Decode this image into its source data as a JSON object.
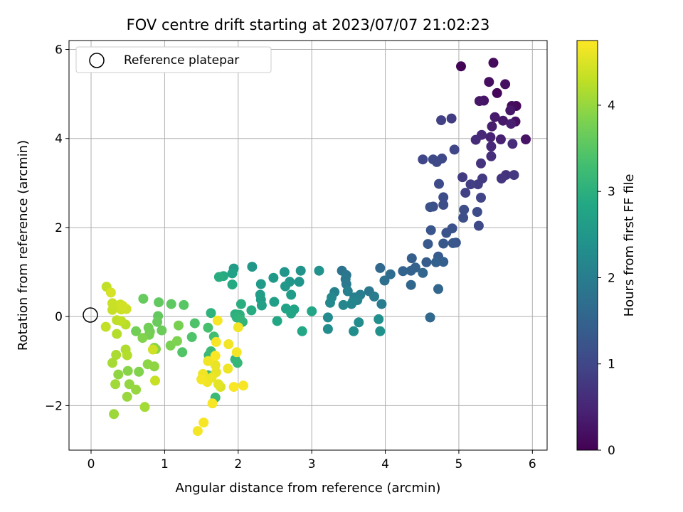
{
  "chart_data": {
    "type": "scatter",
    "title": "FOV centre drift starting at 2023/07/07 21:02:23",
    "xlabel": "Angular distance from reference (arcmin)",
    "ylabel": "Rotation from reference (arcmin)",
    "colorbar_label": "Hours from first FF file",
    "xlim": [
      -0.3,
      6.2
    ],
    "ylim": [
      -3.0,
      6.2
    ],
    "x_ticks": [
      0,
      1,
      2,
      3,
      4,
      5,
      6
    ],
    "y_ticks": [
      -2,
      0,
      2,
      4,
      6
    ],
    "colorbar_range": [
      0,
      4.75
    ],
    "colorbar_ticks": [
      0,
      1,
      2,
      3,
      4
    ],
    "colormap": "viridis",
    "grid": true,
    "legend": {
      "position": "top-left",
      "entries": [
        "Reference platepar"
      ]
    },
    "reference_point": {
      "x": 0,
      "y": 0
    },
    "points": [
      [
        5.03,
        5.62,
        0.05
      ],
      [
        5.47,
        5.7,
        0.12
      ],
      [
        5.41,
        5.27,
        0.18
      ],
      [
        5.63,
        5.22,
        0.22
      ],
      [
        5.52,
        5.02,
        0.08
      ],
      [
        5.28,
        4.84,
        0.28
      ],
      [
        5.34,
        4.85,
        0.26
      ],
      [
        5.72,
        4.73,
        0.15
      ],
      [
        5.78,
        4.73,
        0.1
      ],
      [
        5.7,
        4.63,
        0.3
      ],
      [
        5.49,
        4.48,
        0.35
      ],
      [
        5.6,
        4.4,
        0.33
      ],
      [
        5.77,
        4.38,
        0.2
      ],
      [
        5.71,
        4.33,
        0.4
      ],
      [
        5.45,
        4.27,
        0.38
      ],
      [
        5.43,
        4.03,
        0.45
      ],
      [
        5.31,
        4.08,
        0.55
      ],
      [
        5.23,
        3.97,
        0.58
      ],
      [
        5.57,
        3.98,
        0.42
      ],
      [
        5.91,
        3.98,
        0.25
      ],
      [
        5.44,
        3.82,
        0.52
      ],
      [
        5.73,
        3.88,
        0.6
      ],
      [
        5.44,
        3.6,
        0.62
      ],
      [
        5.3,
        3.44,
        0.7
      ],
      [
        4.9,
        4.45,
        0.85
      ],
      [
        4.76,
        4.41,
        0.9
      ],
      [
        5.64,
        3.18,
        0.68
      ],
      [
        5.58,
        3.1,
        0.72
      ],
      [
        5.75,
        3.18,
        0.78
      ],
      [
        5.32,
        3.1,
        0.8
      ],
      [
        5.05,
        3.13,
        0.82
      ],
      [
        5.26,
        2.97,
        0.85
      ],
      [
        5.16,
        2.97,
        0.88
      ],
      [
        5.09,
        2.78,
        0.9
      ],
      [
        5.3,
        2.67,
        0.95
      ],
      [
        4.94,
        3.75,
        0.98
      ],
      [
        4.51,
        3.53,
        1.0
      ],
      [
        4.77,
        3.55,
        1.02
      ],
      [
        4.65,
        3.53,
        1.05
      ],
      [
        4.7,
        3.47,
        1.03
      ],
      [
        4.73,
        2.98,
        1.08
      ],
      [
        4.79,
        2.68,
        1.1
      ],
      [
        4.79,
        2.51,
        1.12
      ],
      [
        4.65,
        2.47,
        1.15
      ],
      [
        4.61,
        2.46,
        1.18
      ],
      [
        5.07,
        2.4,
        1.12
      ],
      [
        5.25,
        2.35,
        1.08
      ],
      [
        5.06,
        2.22,
        1.14
      ],
      [
        5.27,
        2.04,
        1.06
      ],
      [
        4.91,
        1.98,
        1.2
      ],
      [
        4.83,
        1.88,
        1.22
      ],
      [
        4.62,
        1.94,
        1.25
      ],
      [
        4.92,
        1.65,
        1.28
      ],
      [
        4.96,
        1.66,
        1.24
      ],
      [
        4.79,
        1.64,
        1.3
      ],
      [
        4.58,
        1.63,
        1.32
      ],
      [
        4.72,
        1.35,
        1.35
      ],
      [
        4.36,
        1.31,
        1.4
      ],
      [
        4.56,
        1.22,
        1.38
      ],
      [
        4.79,
        1.23,
        1.42
      ],
      [
        4.69,
        1.22,
        1.45
      ],
      [
        4.41,
        1.1,
        1.48
      ],
      [
        4.35,
        1.03,
        1.5
      ],
      [
        4.24,
        1.02,
        1.52
      ],
      [
        4.51,
        0.98,
        1.55
      ],
      [
        4.72,
        0.62,
        1.55
      ],
      [
        4.35,
        0.71,
        1.58
      ],
      [
        4.61,
        -0.02,
        1.6
      ],
      [
        3.93,
        1.09,
        1.62
      ],
      [
        4.07,
        0.95,
        1.7
      ],
      [
        3.99,
        0.81,
        1.72
      ],
      [
        3.41,
        1.03,
        1.8
      ],
      [
        3.47,
        0.93,
        1.85
      ],
      [
        3.46,
        0.84,
        1.9
      ],
      [
        3.78,
        0.57,
        1.88
      ],
      [
        3.47,
        0.73,
        1.92
      ],
      [
        3.85,
        0.45,
        1.95
      ],
      [
        3.95,
        0.28,
        1.98
      ],
      [
        3.66,
        0.49,
        2.0
      ],
      [
        3.58,
        0.43,
        2.02
      ],
      [
        3.49,
        0.57,
        2.05
      ],
      [
        3.31,
        0.55,
        2.08
      ],
      [
        3.62,
        0.37,
        2.1
      ],
      [
        3.56,
        0.34,
        2.12
      ],
      [
        3.54,
        0.28,
        2.15
      ],
      [
        3.43,
        0.26,
        2.18
      ],
      [
        3.27,
        0.43,
        2.2
      ],
      [
        3.25,
        0.31,
        2.22
      ],
      [
        3.22,
        -0.02,
        2.25
      ],
      [
        3.22,
        -0.28,
        2.28
      ],
      [
        3.64,
        -0.13,
        2.3
      ],
      [
        3.57,
        -0.33,
        2.32
      ],
      [
        3.91,
        -0.06,
        2.35
      ],
      [
        3.93,
        -0.33,
        2.38
      ],
      [
        3.1,
        1.03,
        2.4
      ],
      [
        2.85,
        1.03,
        2.42
      ],
      [
        2.83,
        0.78,
        2.45
      ],
      [
        2.63,
        1.0,
        2.48
      ],
      [
        2.7,
        0.78,
        2.5
      ],
      [
        2.48,
        0.87,
        2.55
      ],
      [
        2.64,
        0.68,
        2.52
      ],
      [
        2.31,
        0.73,
        2.58
      ],
      [
        2.72,
        0.49,
        2.6
      ],
      [
        2.3,
        0.49,
        2.62
      ],
      [
        2.31,
        0.38,
        2.65
      ],
      [
        2.49,
        0.33,
        2.68
      ],
      [
        2.32,
        0.25,
        2.7
      ],
      [
        2.65,
        0.18,
        2.72
      ],
      [
        2.76,
        0.16,
        2.75
      ],
      [
        2.72,
        0.07,
        2.78
      ],
      [
        3.0,
        0.12,
        2.8
      ],
      [
        2.53,
        -0.1,
        2.82
      ],
      [
        2.87,
        -0.33,
        2.85
      ],
      [
        2.19,
        1.12,
        2.5
      ],
      [
        1.94,
        1.08,
        2.6
      ],
      [
        1.92,
        0.97,
        2.7
      ],
      [
        1.8,
        0.91,
        2.9
      ],
      [
        1.74,
        0.89,
        2.95
      ],
      [
        1.92,
        0.72,
        2.88
      ],
      [
        2.18,
        0.14,
        2.92
      ],
      [
        2.04,
        0.28,
        2.98
      ],
      [
        1.96,
        0.05,
        3.0
      ],
      [
        2.02,
        0.04,
        3.02
      ],
      [
        1.98,
        -0.02,
        3.05
      ],
      [
        2.03,
        -0.07,
        3.08
      ],
      [
        2.06,
        -0.12,
        3.1
      ],
      [
        1.63,
        0.08,
        3.05
      ],
      [
        1.96,
        -0.96,
        3.12
      ],
      [
        1.99,
        -1.04,
        3.15
      ],
      [
        1.69,
        -1.82,
        3.2
      ],
      [
        1.6,
        -0.87,
        3.18
      ],
      [
        1.63,
        -0.78,
        3.22
      ],
      [
        1.59,
        -1.32,
        3.25
      ],
      [
        1.52,
        -1.37,
        3.28
      ],
      [
        1.67,
        -0.45,
        3.3
      ],
      [
        1.59,
        -0.25,
        3.35
      ],
      [
        1.41,
        -0.15,
        3.4
      ],
      [
        1.37,
        -0.46,
        3.42
      ],
      [
        1.24,
        -0.8,
        3.45
      ],
      [
        1.26,
        0.26,
        3.5
      ],
      [
        1.09,
        0.28,
        3.55
      ],
      [
        0.92,
        0.32,
        3.58
      ],
      [
        0.71,
        0.4,
        3.62
      ],
      [
        0.91,
        0.01,
        3.6
      ],
      [
        0.9,
        -0.12,
        3.65
      ],
      [
        0.96,
        -0.31,
        3.68
      ],
      [
        0.8,
        -0.34,
        3.7
      ],
      [
        0.78,
        -0.25,
        3.72
      ],
      [
        0.79,
        -0.41,
        3.75
      ],
      [
        1.19,
        -0.2,
        3.78
      ],
      [
        1.08,
        -0.65,
        3.8
      ],
      [
        1.17,
        -0.55,
        3.82
      ],
      [
        0.61,
        -0.33,
        3.72
      ],
      [
        0.7,
        -0.48,
        3.85
      ],
      [
        0.86,
        -0.7,
        3.88
      ],
      [
        0.88,
        -0.73,
        3.9
      ],
      [
        0.77,
        -1.07,
        3.92
      ],
      [
        0.86,
        -1.12,
        3.95
      ],
      [
        0.65,
        -1.24,
        3.85
      ],
      [
        0.5,
        -1.22,
        3.9
      ],
      [
        0.37,
        -1.3,
        3.95
      ],
      [
        0.52,
        -1.52,
        3.98
      ],
      [
        0.61,
        -1.64,
        4.0
      ],
      [
        0.49,
        -1.8,
        4.02
      ],
      [
        0.73,
        -2.03,
        4.1
      ],
      [
        0.31,
        -2.19,
        4.05
      ],
      [
        0.33,
        -1.52,
        4.08
      ],
      [
        0.29,
        -1.04,
        4.12
      ],
      [
        0.34,
        -0.86,
        4.15
      ],
      [
        0.47,
        -0.74,
        4.18
      ],
      [
        0.49,
        -0.87,
        4.2
      ],
      [
        0.35,
        -0.39,
        4.22
      ],
      [
        0.47,
        -0.18,
        4.25
      ],
      [
        0.35,
        -0.08,
        4.28
      ],
      [
        0.41,
        -0.1,
        4.3
      ],
      [
        0.2,
        -0.23,
        4.32
      ],
      [
        0.29,
        0.15,
        4.35
      ],
      [
        0.41,
        0.16,
        4.38
      ],
      [
        0.48,
        0.17,
        4.4
      ],
      [
        0.43,
        0.24,
        4.42
      ],
      [
        0.29,
        0.3,
        4.36
      ],
      [
        0.4,
        0.27,
        4.38
      ],
      [
        0.27,
        0.54,
        4.45
      ],
      [
        0.21,
        0.67,
        4.3
      ],
      [
        0.87,
        -1.44,
        4.35
      ],
      [
        0.84,
        -0.74,
        4.4
      ],
      [
        1.76,
        -1.58,
        4.5
      ],
      [
        1.73,
        -1.52,
        4.55
      ],
      [
        1.7,
        -1.25,
        4.58
      ],
      [
        1.69,
        -1.09,
        4.6
      ],
      [
        1.64,
        -1.37,
        4.62
      ],
      [
        1.58,
        -1.47,
        4.65
      ],
      [
        1.55,
        -1.42,
        4.62
      ],
      [
        1.52,
        -1.29,
        4.65
      ],
      [
        1.5,
        -1.41,
        4.68
      ],
      [
        1.59,
        -1.0,
        4.65
      ],
      [
        1.65,
        -1.95,
        4.7
      ],
      [
        1.45,
        -2.57,
        4.68
      ],
      [
        1.53,
        -2.38,
        4.7
      ],
      [
        1.7,
        -0.57,
        4.7
      ],
      [
        1.69,
        -0.88,
        4.72
      ],
      [
        1.87,
        -0.62,
        4.66
      ],
      [
        1.94,
        -1.58,
        4.72
      ],
      [
        2.07,
        -1.55,
        4.7
      ],
      [
        1.86,
        -1.17,
        4.64
      ],
      [
        1.98,
        -0.8,
        4.68
      ],
      [
        2.0,
        -0.24,
        4.66
      ],
      [
        1.72,
        -0.09,
        4.7
      ]
    ]
  }
}
